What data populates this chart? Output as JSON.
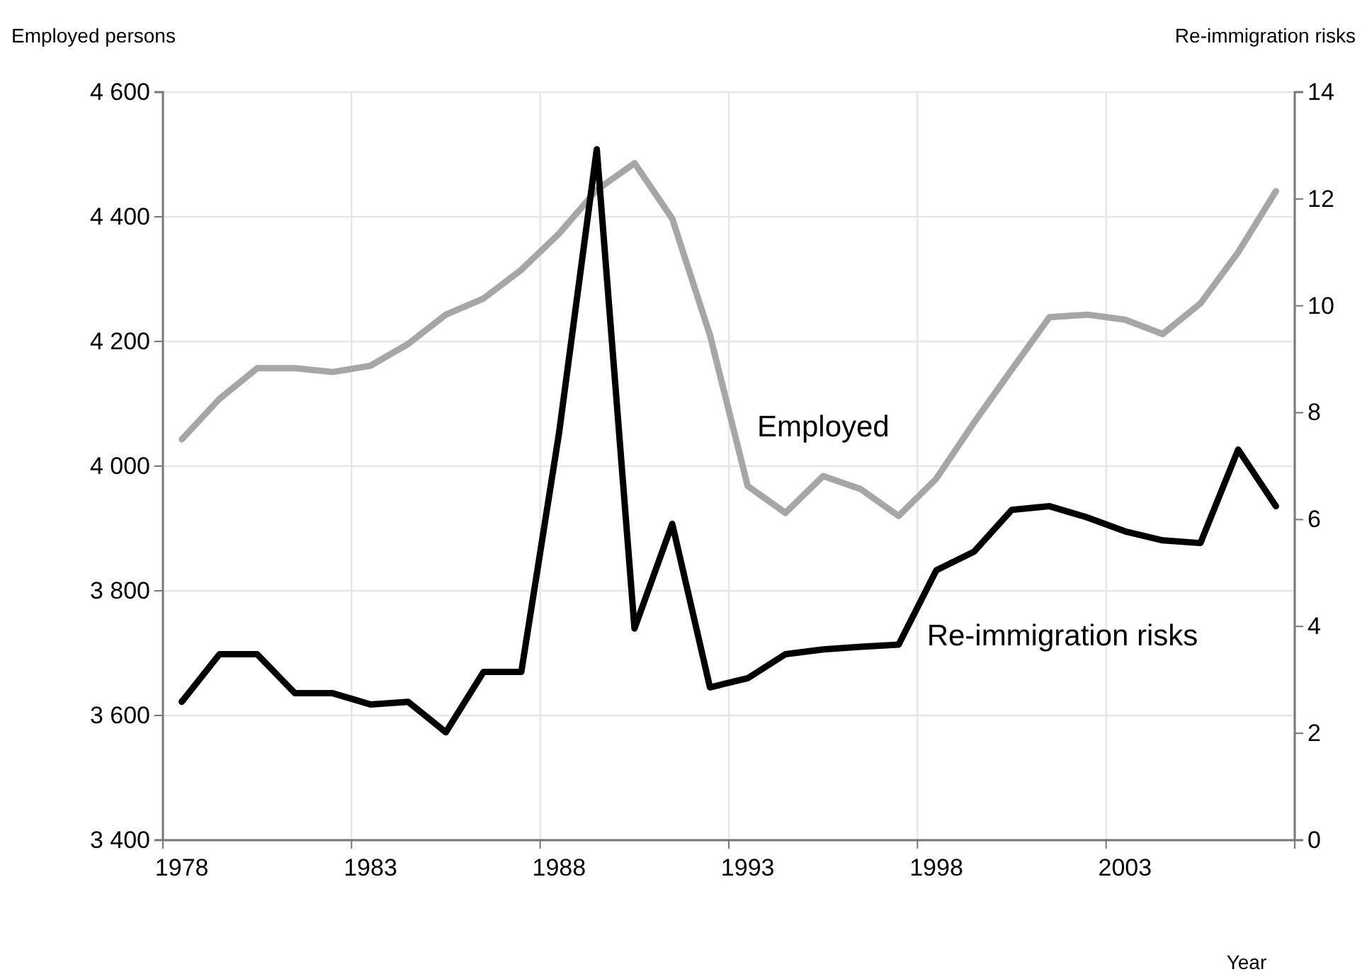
{
  "chart_data": {
    "type": "line",
    "categories": [
      "1978",
      null,
      null,
      null,
      null,
      "1983",
      null,
      null,
      null,
      null,
      "1988",
      null,
      null,
      null,
      null,
      "1993",
      null,
      null,
      null,
      null,
      "1998",
      null,
      null,
      null,
      null,
      "2003",
      null,
      null,
      null,
      null
    ],
    "series": [
      {
        "name": "Employed",
        "color": "#a6a6a6",
        "values": [
          4043,
          4108,
          4157,
          4157,
          4151,
          4161,
          4196,
          4243,
          4269,
          4315,
          4373,
          4443,
          4486,
          4397,
          4210,
          3968,
          3925,
          3984,
          3963,
          3920,
          3980,
          4070,
          4155,
          4239,
          4243,
          4235,
          4212,
          4261,
          4343,
          4441
        ]
      },
      {
        "name": "Re-immigration risks",
        "color": "#000000",
        "axis": "y2",
        "values": [
          2.59,
          3.48,
          3.48,
          2.75,
          2.75,
          2.54,
          2.59,
          2.02,
          3.15,
          3.15,
          7.62,
          12.93,
          3.96,
          5.92,
          2.86,
          3.03,
          3.48,
          3.57,
          3.62,
          3.66,
          5.05,
          5.4,
          6.18,
          6.25,
          6.04,
          5.78,
          5.61,
          5.56,
          7.31,
          6.25
        ]
      }
    ],
    "xlabel": "Year",
    "ylabel": "Employed persons",
    "y2label": "Re-immigration risks",
    "ylim": [
      3400,
      4600
    ],
    "yticks": [
      {
        "value": 3400,
        "label": "3 400"
      },
      {
        "value": 3600,
        "label": "3 600"
      },
      {
        "value": 3800,
        "label": "3 800"
      },
      {
        "value": 4000,
        "label": "4 000"
      },
      {
        "value": 4200,
        "label": "4 200"
      },
      {
        "value": 4400,
        "label": "4 400"
      },
      {
        "value": 4600,
        "label": "4 600"
      }
    ],
    "y2lim": [
      0,
      14
    ],
    "y2ticks": [
      0,
      2,
      4,
      6,
      8,
      10,
      12,
      14
    ],
    "grid": true,
    "legend": false,
    "marker": "none",
    "line_style": "solid"
  }
}
